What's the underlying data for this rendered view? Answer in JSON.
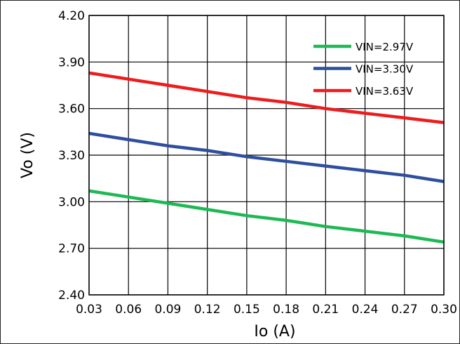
{
  "chart_data": {
    "type": "line",
    "title": "",
    "xlabel": "Io (A)",
    "ylabel": "Vo  (V)",
    "xlim": [
      0.03,
      0.3
    ],
    "ylim": [
      2.4,
      4.2
    ],
    "x_ticks": [
      "0.03",
      "0.06",
      "0.09",
      "0.12",
      "0.15",
      "0.18",
      "0.21",
      "0.24",
      "0.27",
      "0.30"
    ],
    "y_ticks": [
      "4.20",
      "3.90",
      "3.60",
      "3.30",
      "3.00",
      "2.70",
      "2.40"
    ],
    "grid": true,
    "legend_position": "top-right",
    "x": [
      0.03,
      0.06,
      0.09,
      0.12,
      0.15,
      0.18,
      0.21,
      0.24,
      0.27,
      0.3
    ],
    "series": [
      {
        "name": "VIN=2.97V",
        "color": "#1db954",
        "values": [
          3.07,
          3.03,
          2.99,
          2.95,
          2.91,
          2.88,
          2.84,
          2.81,
          2.78,
          2.74
        ]
      },
      {
        "name": "VIN=3.30V",
        "color": "#2e4f9e",
        "values": [
          3.44,
          3.4,
          3.36,
          3.33,
          3.29,
          3.26,
          3.23,
          3.2,
          3.17,
          3.13
        ]
      },
      {
        "name": "VIN=3.63V",
        "color": "#ee1c1c",
        "values": [
          3.83,
          3.79,
          3.75,
          3.71,
          3.67,
          3.64,
          3.6,
          3.57,
          3.54,
          3.51
        ]
      }
    ]
  }
}
